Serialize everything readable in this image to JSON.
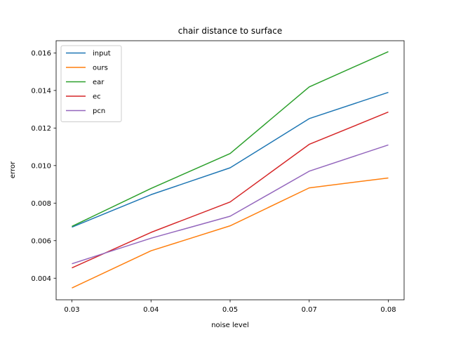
{
  "chart_data": {
    "type": "line",
    "title": "chair distance to surface",
    "xlabel": "noise level",
    "ylabel": "error",
    "categories": [
      "0.03",
      "0.04",
      "0.05",
      "0.07",
      "0.08"
    ],
    "y_ticks": [
      "0.004",
      "0.006",
      "0.008",
      "0.010",
      "0.012",
      "0.014",
      "0.016"
    ],
    "ylim": [
      0.00285,
      0.01665
    ],
    "grid": false,
    "legend_position": "top-left",
    "series": [
      {
        "name": "input",
        "color": "#1f77b4",
        "values": [
          0.00672,
          0.00845,
          0.00988,
          0.0125,
          0.0139
        ]
      },
      {
        "name": "ours",
        "color": "#ff7f0e",
        "values": [
          0.00348,
          0.00546,
          0.00679,
          0.00881,
          0.00934
        ]
      },
      {
        "name": "ear",
        "color": "#2ca02c",
        "values": [
          0.00676,
          0.00878,
          0.01064,
          0.01419,
          0.01607
        ]
      },
      {
        "name": "ec",
        "color": "#d62728",
        "values": [
          0.00455,
          0.00644,
          0.00806,
          0.01113,
          0.01285
        ]
      },
      {
        "name": "pcn",
        "color": "#9467bd",
        "values": [
          0.00477,
          0.00613,
          0.0073,
          0.0097,
          0.0111
        ]
      }
    ]
  }
}
